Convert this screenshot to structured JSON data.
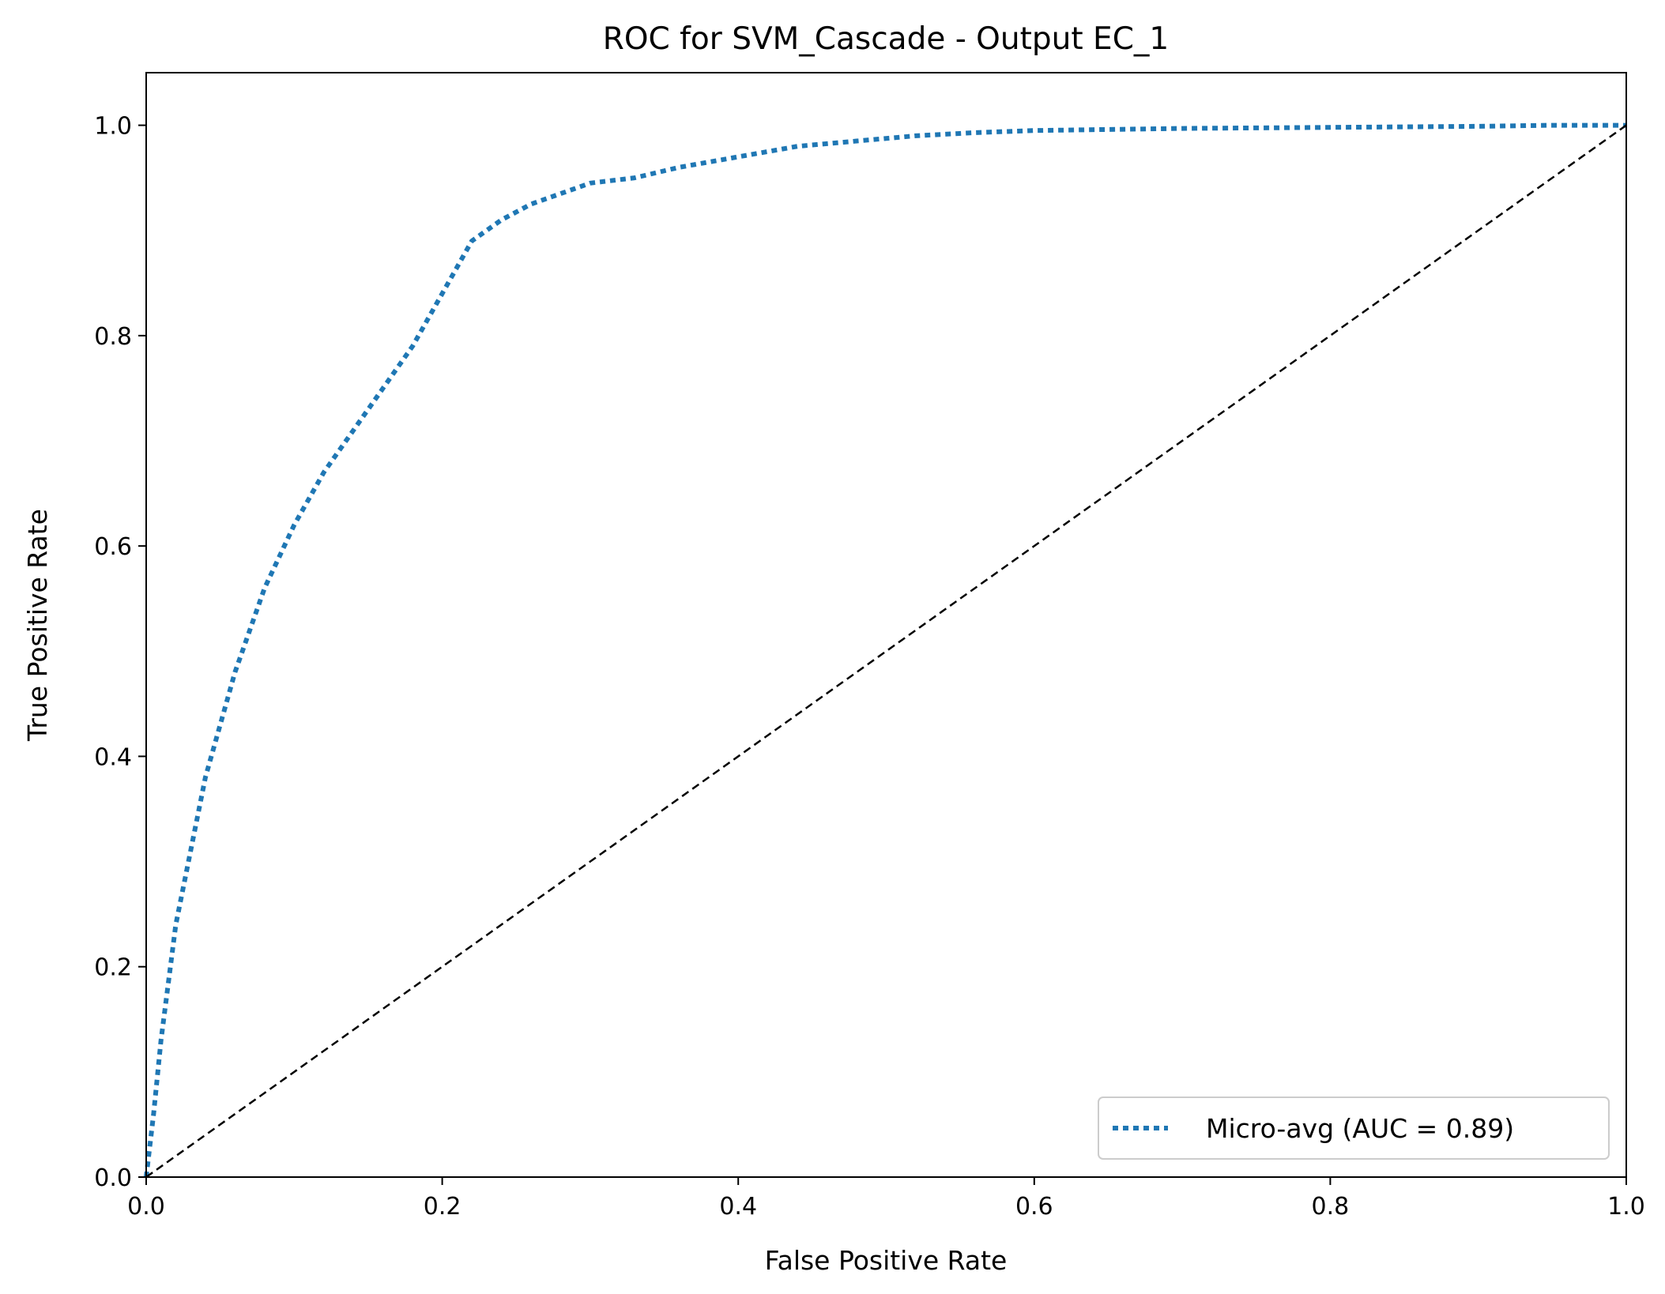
{
  "chart_data": {
    "type": "line",
    "title": "ROC for SVM_Cascade - Output EC_1",
    "xlabel": "False Positive Rate",
    "ylabel": "True Positive Rate",
    "xlim": [
      0.0,
      1.0
    ],
    "ylim": [
      0.0,
      1.05
    ],
    "xticks": [
      "0.0",
      "0.2",
      "0.4",
      "0.6",
      "0.8",
      "1.0"
    ],
    "yticks": [
      "0.0",
      "0.2",
      "0.4",
      "0.6",
      "0.8",
      "1.0"
    ],
    "grid": false,
    "legend_position": "lower-right",
    "legend": [
      "Micro-avg (AUC = 0.89)"
    ],
    "series": [
      {
        "name": "Micro-avg (AUC = 0.89)",
        "color": "#1f77b4",
        "style": "dotted",
        "x": [
          0.0,
          0.005,
          0.01,
          0.02,
          0.03,
          0.04,
          0.05,
          0.06,
          0.07,
          0.08,
          0.09,
          0.1,
          0.12,
          0.14,
          0.16,
          0.18,
          0.2,
          0.22,
          0.24,
          0.26,
          0.28,
          0.3,
          0.33,
          0.36,
          0.4,
          0.44,
          0.48,
          0.52,
          0.56,
          0.6,
          0.65,
          0.7,
          0.8,
          0.9,
          0.95,
          1.0
        ],
        "y": [
          0.0,
          0.06,
          0.13,
          0.24,
          0.31,
          0.38,
          0.43,
          0.48,
          0.52,
          0.56,
          0.59,
          0.62,
          0.67,
          0.71,
          0.75,
          0.79,
          0.84,
          0.89,
          0.91,
          0.925,
          0.935,
          0.945,
          0.95,
          0.96,
          0.97,
          0.98,
          0.985,
          0.99,
          0.993,
          0.995,
          0.996,
          0.997,
          0.998,
          0.999,
          1.0,
          1.0
        ]
      },
      {
        "name": "",
        "color": "#000000",
        "style": "dashed",
        "x": [
          0.0,
          1.0
        ],
        "y": [
          0.0,
          1.0
        ]
      }
    ]
  }
}
